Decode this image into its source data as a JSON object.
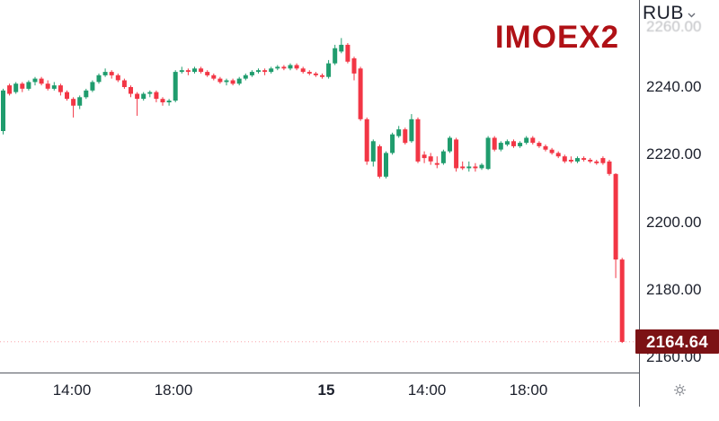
{
  "header": {
    "currency_label": "RUB"
  },
  "icons": {
    "currency_caret": "chevron-down",
    "settings": "gear"
  },
  "chart_data": {
    "type": "candlestick",
    "symbol": "IMOEX2",
    "currency": "RUB",
    "interval_minutes": 15,
    "last_price": 2164.64,
    "last_price_text": "2164.64",
    "colors": {
      "up": "#1f9c6d",
      "down": "#f23645",
      "badge_bg": "#7c1215",
      "badge_text": "#ffffff",
      "symbol_text": "#b01116",
      "axis_text": "#1b1f2b",
      "axis_line": "#555861"
    },
    "y_axis": {
      "ylim": [
        2155,
        2266
      ],
      "grid": false,
      "ticks": [
        {
          "text": "2260.00",
          "price": 2260,
          "faded": true,
          "dy": 8
        },
        {
          "text": "2240.00",
          "price": 2240,
          "faded": false,
          "dy": 0
        },
        {
          "text": "2220.00",
          "price": 2220,
          "faded": false,
          "dy": 0
        },
        {
          "text": "2200.00",
          "price": 2200,
          "faded": false,
          "dy": 0
        },
        {
          "text": "2180.00",
          "price": 2180,
          "faded": false,
          "dy": 0
        },
        {
          "text": "2160.00",
          "price": 2160,
          "faded": false,
          "dy": 0
        }
      ]
    },
    "x_axis": {
      "ticks": [
        {
          "text": "14:00",
          "x": 80,
          "bold": false
        },
        {
          "text": "18:00",
          "x": 193,
          "bold": false
        },
        {
          "text": "15",
          "x": 363,
          "bold": true
        },
        {
          "text": "14:00",
          "x": 475,
          "bold": false
        },
        {
          "text": "18:00",
          "x": 588,
          "bold": false
        }
      ]
    },
    "price_line": {
      "price": 2164.64,
      "style": "dotted"
    },
    "candles": [
      [
        2227,
        2239.5,
        2226,
        2239
      ],
      [
        2240.5,
        2241,
        2237.5,
        2238
      ],
      [
        2238.5,
        2241.5,
        2238,
        2241
      ],
      [
        2241,
        2241.5,
        2238.5,
        2239.5
      ],
      [
        2239.5,
        2242,
        2239,
        2241.5
      ],
      [
        2241.5,
        2243,
        2240.5,
        2242.5
      ],
      [
        2242.5,
        2243,
        2240.5,
        2241
      ],
      [
        2241,
        2242,
        2239,
        2239.5
      ],
      [
        2239.5,
        2241.5,
        2239,
        2240.5
      ],
      [
        2240.5,
        2241,
        2237.5,
        2238.5
      ],
      [
        2238.5,
        2239,
        2236,
        2236.5
      ],
      [
        2236.5,
        2237,
        2231,
        2234.5
      ],
      [
        2234.5,
        2237.5,
        2233.5,
        2237
      ],
      [
        2237,
        2239.5,
        2236.5,
        2239
      ],
      [
        2239,
        2242,
        2238.5,
        2241.5
      ],
      [
        2241.5,
        2244,
        2241,
        2243.5
      ],
      [
        2243.5,
        2245.5,
        2243,
        2244.5
      ],
      [
        2244.5,
        2245,
        2242.5,
        2243.5
      ],
      [
        2243.5,
        2244,
        2241.5,
        2242
      ],
      [
        2242,
        2242.5,
        2239.5,
        2240
      ],
      [
        2240,
        2240.5,
        2237,
        2238
      ],
      [
        2238,
        2238.5,
        2231.5,
        2236.5
      ],
      [
        2236.5,
        2238.5,
        2236,
        2238
      ],
      [
        2238,
        2239,
        2237,
        2238.5
      ],
      [
        2238.5,
        2239,
        2235.5,
        2236.5
      ],
      [
        2236.5,
        2237,
        2234.5,
        2235.5
      ],
      [
        2235.5,
        2236.5,
        2234.5,
        2236
      ],
      [
        2236,
        2245,
        2235.5,
        2244.5
      ],
      [
        2244.5,
        2246,
        2244,
        2245
      ],
      [
        2245,
        2245.5,
        2243.5,
        2244.5
      ],
      [
        2244.5,
        2246,
        2244,
        2245.5
      ],
      [
        2245.5,
        2246,
        2244,
        2244.5
      ],
      [
        2244.5,
        2245,
        2243,
        2243.5
      ],
      [
        2243.5,
        2244,
        2242,
        2242.5
      ],
      [
        2242.5,
        2243,
        2241,
        2241.5
      ],
      [
        2241.5,
        2242.5,
        2240.5,
        2242
      ],
      [
        2242,
        2242.5,
        2240.5,
        2241
      ],
      [
        2241,
        2243,
        2240.5,
        2242.5
      ],
      [
        2242.5,
        2244,
        2242,
        2243.5
      ],
      [
        2243.5,
        2245,
        2243,
        2244.5
      ],
      [
        2244.5,
        2245.5,
        2244,
        2245
      ],
      [
        2245,
        2245.5,
        2243.5,
        2244.5
      ],
      [
        2244.5,
        2246,
        2244,
        2245.5
      ],
      [
        2245.5,
        2246.5,
        2245,
        2246
      ],
      [
        2246,
        2246.5,
        2245,
        2245.5
      ],
      [
        2245.5,
        2247,
        2245,
        2246.5
      ],
      [
        2246.5,
        2247,
        2245,
        2245.5
      ],
      [
        2245.5,
        2246,
        2244,
        2244.5
      ],
      [
        2244.5,
        2245,
        2243.5,
        2244
      ],
      [
        2244,
        2244.5,
        2243,
        2243.5
      ],
      [
        2243.5,
        2244,
        2242.5,
        2243
      ],
      [
        2243,
        2248,
        2242.5,
        2247
      ],
      [
        2247,
        2252.5,
        2246.5,
        2251.5
      ],
      [
        2250.5,
        2254.5,
        2250,
        2252.5
      ],
      [
        2252.5,
        2253,
        2247,
        2247.5
      ],
      [
        2248.5,
        2249,
        2242,
        2244
      ],
      [
        2245.5,
        2246,
        2230,
        2230.5
      ],
      [
        2230.5,
        2231,
        2217,
        2218
      ],
      [
        2218,
        2224.5,
        2216.5,
        2224
      ],
      [
        2222.5,
        2223,
        2213,
        2213.5
      ],
      [
        2213.5,
        2221,
        2213,
        2220.5
      ],
      [
        2220.5,
        2226.5,
        2220,
        2226
      ],
      [
        2225.5,
        2228.5,
        2225,
        2227.5
      ],
      [
        2227.5,
        2228,
        2223,
        2223.5
      ],
      [
        2224,
        2232,
        2223.5,
        2230.5
      ],
      [
        2230.5,
        2231,
        2217.5,
        2218
      ],
      [
        2220,
        2221,
        2217.5,
        2219
      ],
      [
        2219.5,
        2220.5,
        2217,
        2218
      ],
      [
        2217.5,
        2219.5,
        2216,
        2217
      ],
      [
        2217.5,
        2221.5,
        2217,
        2221
      ],
      [
        2221,
        2225.5,
        2220.5,
        2225
      ],
      [
        2224.5,
        2225,
        2215,
        2216
      ],
      [
        2216.5,
        2218,
        2215.5,
        2216
      ],
      [
        2216,
        2218,
        2215,
        2216.5
      ],
      [
        2216.5,
        2217.5,
        2215,
        2216
      ],
      [
        2216,
        2217.5,
        2215.5,
        2217
      ],
      [
        2215.8,
        2225.5,
        2215.5,
        2225
      ],
      [
        2225,
        2225.5,
        2221,
        2221.5
      ],
      [
        2221.5,
        2224,
        2221,
        2223.5
      ],
      [
        2223,
        2224.5,
        2222.5,
        2224
      ],
      [
        2224,
        2224.5,
        2222,
        2222.5
      ],
      [
        2222.5,
        2224,
        2222,
        2223.5
      ],
      [
        2223.5,
        2225.5,
        2223,
        2225
      ],
      [
        2225,
        2225.5,
        2223,
        2223.5
      ],
      [
        2223.5,
        2224,
        2222,
        2222.5
      ],
      [
        2222.5,
        2223,
        2221,
        2221.5
      ],
      [
        2221.5,
        2222,
        2220,
        2220.5
      ],
      [
        2220.5,
        2221,
        2219,
        2219.5
      ],
      [
        2219.5,
        2220,
        2217.5,
        2218
      ],
      [
        2218.5,
        2219.5,
        2217.5,
        2218
      ],
      [
        2218,
        2219.5,
        2217.5,
        2219
      ],
      [
        2219,
        2219.5,
        2218,
        2218.5
      ],
      [
        2218.5,
        2219,
        2217.5,
        2218
      ],
      [
        2218,
        2218.5,
        2217,
        2217.5
      ],
      [
        2219,
        2219.5,
        2217,
        2217.5
      ],
      [
        2218,
        2218.5,
        2213.8,
        2214.3
      ],
      [
        2214.3,
        2214.5,
        2183.5,
        2189
      ],
      [
        2189,
        2189.5,
        2164.3,
        2164.64
      ]
    ]
  }
}
